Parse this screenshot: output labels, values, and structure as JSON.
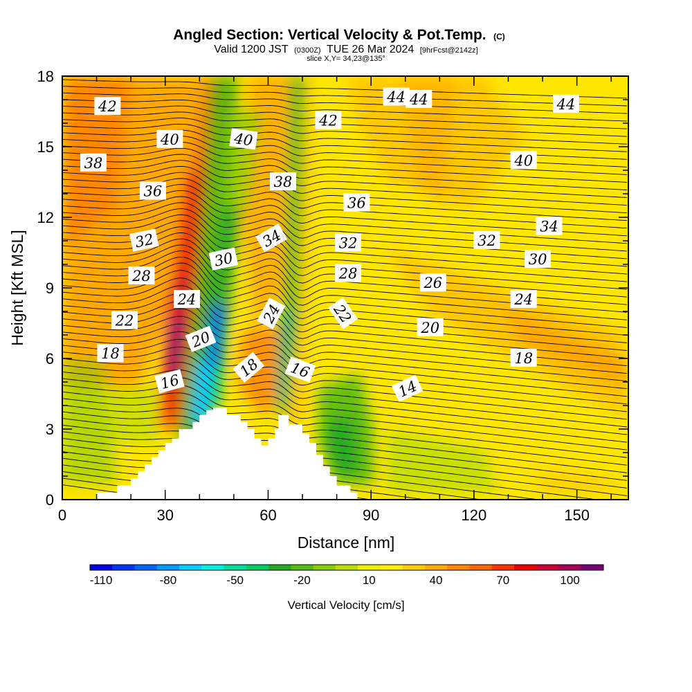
{
  "chart_data": {
    "type": "heatmap",
    "title": "Angled Section: Vertical Velocity & Pot.Temp.",
    "title_mark": "(C)",
    "subtitle": {
      "valid": "Valid 1200 JST",
      "utc": "(0300Z)",
      "date": "TUE 26 Mar 2024",
      "forecast": "[9hrFcst@2142z]"
    },
    "slice": "slice X,Y= 34,23@135°",
    "xlabel": "Distance [nm]",
    "ylabel": "Height [Kft MSL]",
    "xlim": [
      0,
      165
    ],
    "ylim": [
      0,
      18
    ],
    "x_ticks": [
      0,
      30,
      60,
      90,
      120,
      150
    ],
    "y_ticks": [
      0,
      3,
      6,
      9,
      12,
      15,
      18
    ],
    "colorbar": {
      "label": "Vertical Velocity [cm/s]",
      "tick_labels": [
        "-110",
        "-80",
        "-50",
        "-20",
        "10",
        "40",
        "70",
        "100"
      ],
      "tick_values": [
        -110,
        -80,
        -50,
        -20,
        10,
        40,
        70,
        100
      ],
      "range": [
        -115,
        115
      ],
      "step": 10,
      "colors": [
        "#0000e6",
        "#0033ff",
        "#0066ff",
        "#0099ff",
        "#00ccff",
        "#00eedd",
        "#00dd99",
        "#00cc66",
        "#22aa22",
        "#55bb11",
        "#88cc00",
        "#bbdd00",
        "#eeee00",
        "#ffee00",
        "#ffcc00",
        "#ffaa00",
        "#ff8800",
        "#ff6600",
        "#ff3300",
        "#ee0000",
        "#cc0033",
        "#aa0055",
        "#770077"
      ]
    },
    "terrain": {
      "x": [
        0,
        10,
        10,
        16,
        16,
        20,
        20,
        22,
        22,
        24,
        24,
        26,
        26,
        28,
        28,
        30,
        30,
        32,
        32,
        34,
        34,
        38,
        38,
        40,
        40,
        42,
        42,
        44,
        44,
        48,
        48,
        52,
        52,
        54,
        54,
        56,
        56,
        58,
        58,
        60,
        60,
        62,
        62,
        63,
        63,
        66,
        66,
        70,
        70,
        72,
        72,
        74,
        74,
        76,
        76,
        78,
        78,
        80,
        80,
        84,
        84,
        86,
        86,
        88,
        88,
        165
      ],
      "y": [
        0,
        0,
        0.3,
        0.3,
        0.6,
        0.6,
        0.9,
        0.9,
        1.2,
        1.2,
        1.5,
        1.5,
        1.8,
        1.8,
        2.1,
        2.1,
        2.4,
        2.4,
        2.6,
        2.6,
        3.0,
        3.0,
        3.3,
        3.3,
        3.6,
        3.6,
        3.8,
        3.8,
        3.9,
        3.9,
        3.6,
        3.6,
        3.3,
        3.3,
        3.0,
        3.0,
        2.6,
        2.6,
        2.3,
        2.3,
        2.6,
        2.6,
        3.0,
        3.0,
        3.6,
        3.6,
        3.2,
        3.2,
        2.8,
        2.8,
        2.4,
        2.4,
        1.9,
        1.9,
        1.4,
        1.4,
        1.0,
        1.0,
        0.6,
        0.6,
        0.3,
        0.3,
        0,
        0
      ]
    },
    "contour_labels": [
      {
        "text": "42",
        "x": 16,
        "y": 16.7,
        "angle": 0
      },
      {
        "text": "40",
        "x": 38,
        "y": 15.3,
        "angle": 0
      },
      {
        "text": "40",
        "x": 64,
        "y": 15.3,
        "angle": 8
      },
      {
        "text": "38",
        "x": 11,
        "y": 14.3,
        "angle": 0
      },
      {
        "text": "36",
        "x": 32,
        "y": 13.1,
        "angle": 0
      },
      {
        "text": "32",
        "x": 29,
        "y": 11.0,
        "angle": -12
      },
      {
        "text": "28",
        "x": 28,
        "y": 9.5,
        "angle": 0
      },
      {
        "text": "24",
        "x": 44,
        "y": 8.5,
        "angle": 0
      },
      {
        "text": "22",
        "x": 22,
        "y": 7.6,
        "angle": 0
      },
      {
        "text": "20",
        "x": 49,
        "y": 6.8,
        "angle": -22
      },
      {
        "text": "18",
        "x": 17,
        "y": 6.2,
        "angle": 0
      },
      {
        "text": "16",
        "x": 38,
        "y": 5.0,
        "angle": -15
      },
      {
        "text": "30",
        "x": 57,
        "y": 10.2,
        "angle": -12
      },
      {
        "text": "34",
        "x": 74,
        "y": 11.1,
        "angle": -30
      },
      {
        "text": "38",
        "x": 78,
        "y": 13.5,
        "angle": 0
      },
      {
        "text": "42",
        "x": 94,
        "y": 16.1,
        "angle": 0
      },
      {
        "text": "44",
        "x": 118,
        "y": 17.1,
        "angle": 0
      },
      {
        "text": "24",
        "x": 74,
        "y": 7.9,
        "angle": -62
      },
      {
        "text": "18",
        "x": 66,
        "y": 5.6,
        "angle": -40
      },
      {
        "text": "36",
        "x": 104,
        "y": 12.6,
        "angle": 0
      },
      {
        "text": "32",
        "x": 101,
        "y": 10.9,
        "angle": 0
      },
      {
        "text": "28",
        "x": 101,
        "y": 9.6,
        "angle": 0
      },
      {
        "text": "22",
        "x": 99,
        "y": 7.9,
        "angle": 55
      },
      {
        "text": "16",
        "x": 84,
        "y": 5.5,
        "angle": 20
      },
      {
        "text": "44",
        "x": 126,
        "y": 17.0,
        "angle": 0
      },
      {
        "text": "14",
        "x": 122,
        "y": 4.7,
        "angle": -25
      },
      {
        "text": "26",
        "x": 131,
        "y": 9.2,
        "angle": 0
      },
      {
        "text": "20",
        "x": 130,
        "y": 7.3,
        "angle": 0
      },
      {
        "text": "32",
        "x": 150,
        "y": 11.0,
        "angle": 0
      },
      {
        "text": "40",
        "x": 163,
        "y": 14.4,
        "angle": 0
      },
      {
        "text": "34",
        "x": 172,
        "y": 11.6,
        "angle": 0
      },
      {
        "text": "30",
        "x": 168,
        "y": 10.2,
        "angle": 0
      },
      {
        "text": "24",
        "x": 163,
        "y": 8.5,
        "angle": 0
      },
      {
        "text": "18",
        "x": 163,
        "y": 6.0,
        "angle": 0
      },
      {
        "text": "44",
        "x": 178,
        "y": 16.8,
        "angle": 0
      }
    ]
  }
}
